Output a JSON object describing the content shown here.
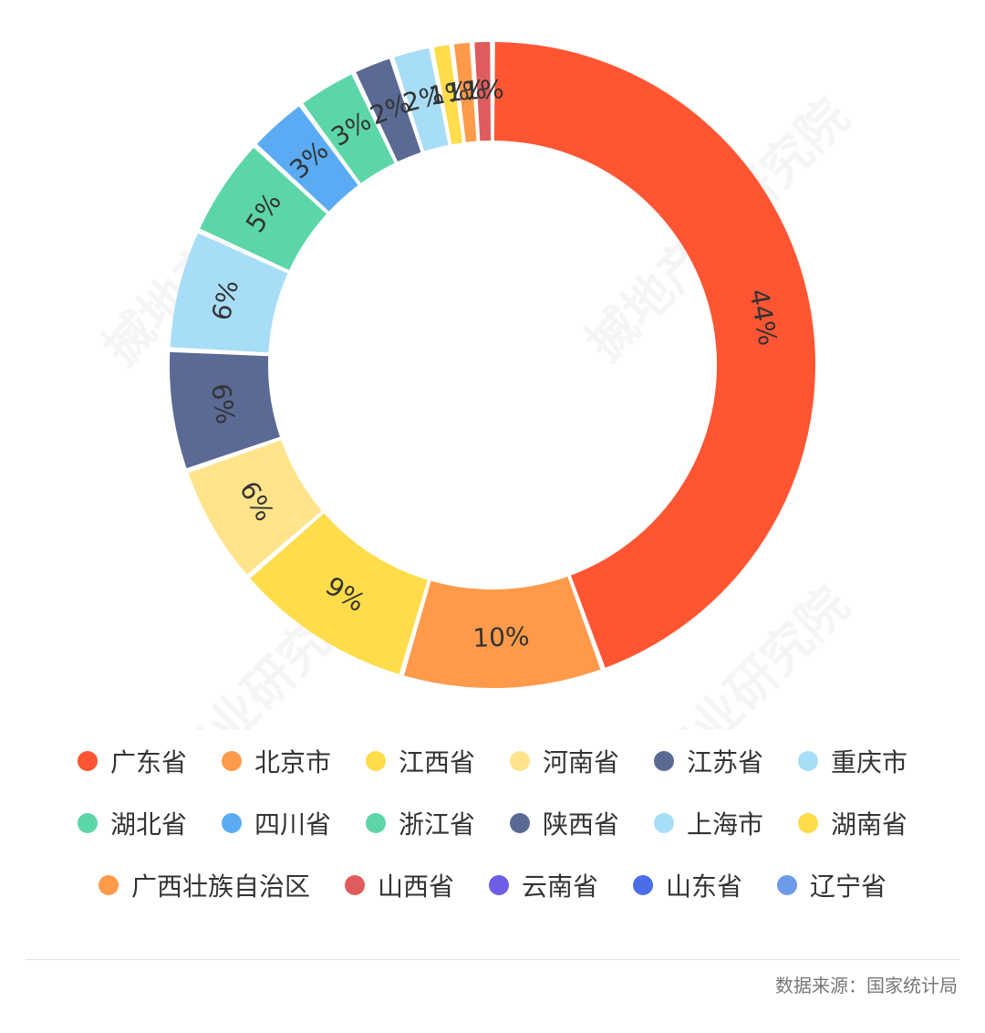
{
  "chart_data": {
    "type": "pie",
    "variant": "donut",
    "categories": [
      "广东省",
      "北京市",
      "江西省",
      "河南省",
      "江苏省",
      "重庆市",
      "湖北省",
      "四川省",
      "浙江省",
      "陕西省",
      "上海市",
      "湖南省",
      "广西壮族自治区",
      "山西省",
      "云南省",
      "山东省",
      "辽宁省"
    ],
    "values": [
      44,
      10,
      9,
      6,
      6,
      6,
      5,
      3,
      3,
      2,
      2,
      1,
      1,
      1,
      0,
      0,
      0
    ],
    "labels": [
      "44%",
      "10%",
      "9%",
      "6%",
      "6%",
      "6%",
      "5%",
      "3%",
      "3%",
      "2%",
      "2%",
      "1%",
      "1%",
      "1%",
      "",
      "",
      ""
    ],
    "colors": [
      "#ff5533",
      "#ff9a4a",
      "#ffdc4a",
      "#ffe48c",
      "#5a6a94",
      "#a8ddf8",
      "#5cd6a8",
      "#5aabf4",
      "#5cd6a8",
      "#5a6a94",
      "#a8ddf8",
      "#ffdc4a",
      "#ff9a4a",
      "#e05c5c",
      "#6e5de6",
      "#4a6ee8",
      "#6e9be8"
    ],
    "legend_position": "bottom"
  },
  "legend_rows": [
    [
      0,
      1,
      2,
      3,
      4,
      5
    ],
    [
      6,
      7,
      8,
      9,
      10,
      11
    ],
    [
      12,
      13,
      14,
      15,
      16
    ]
  ],
  "watermark": "搣地产业研究院",
  "source": "数据来源：国家统计局"
}
